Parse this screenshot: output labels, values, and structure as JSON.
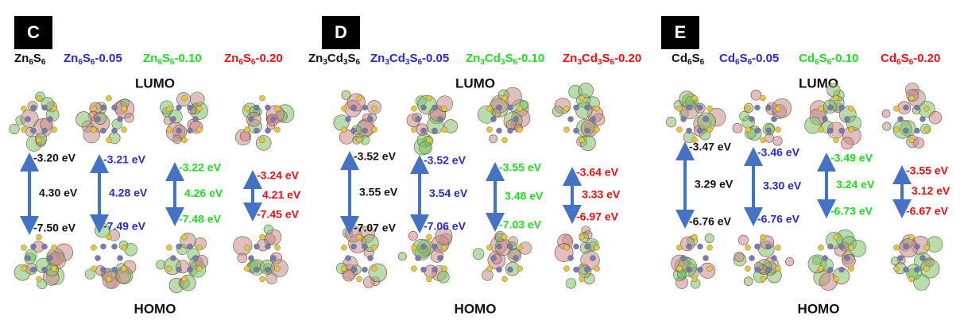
{
  "panels": [
    {
      "label": "C",
      "lumo_title": "LUMO",
      "homo_title": "HOMO",
      "columns": [
        {
          "name": [
            "Zn",
            "6",
            "S",
            "6"
          ],
          "lumo": "-3.20 eV",
          "gap": "4.30 eV",
          "homo": "-7.50 eV"
        },
        {
          "name": [
            "Zn",
            "6",
            "S",
            "6",
            "-0.05"
          ],
          "lumo": "-3.21 eV",
          "gap": "4.28 eV",
          "homo": "-7.49 eV"
        },
        {
          "name": [
            "Zn",
            "6",
            "S",
            "6",
            "-0.10"
          ],
          "lumo": "-3.22 eV",
          "gap": "4.26 eV",
          "homo": "-7.48 eV"
        },
        {
          "name": [
            "Zn",
            "6",
            "S",
            "6",
            "-0.20"
          ],
          "lumo": "-3.24 eV",
          "gap": "4.21 eV",
          "homo": "-7.45 eV"
        }
      ]
    },
    {
      "label": "D",
      "lumo_title": "LUMO",
      "homo_title": "HOMO",
      "columns": [
        {
          "name": [
            "Zn",
            "3",
            "Cd",
            "3",
            "S",
            "6"
          ],
          "lumo": "-3.52 eV",
          "gap": "3.55 eV",
          "homo": "-7.07 eV"
        },
        {
          "name": [
            "Zn",
            "3",
            "Cd",
            "3",
            "S",
            "6",
            "-0.05"
          ],
          "lumo": "-3.52 eV",
          "gap": "3.54 eV",
          "homo": "-7.06 eV"
        },
        {
          "name": [
            "Zn",
            "3",
            "Cd",
            "3",
            "S",
            "6",
            "-0.10"
          ],
          "lumo": "-3.55 eV",
          "gap": "3.48 eV",
          "homo": "-7.03 eV"
        },
        {
          "name": [
            "Zn",
            "3",
            "Cd",
            "3",
            "S",
            "6",
            "-0.20"
          ],
          "lumo": "-3.64 eV",
          "gap": "3.33 eV",
          "homo": "-6.97 eV"
        }
      ]
    },
    {
      "label": "E",
      "lumo_title": "LUMO",
      "homo_title": "HOMO",
      "columns": [
        {
          "name": [
            "Cd",
            "6",
            "S",
            "6"
          ],
          "lumo": "-3.47 eV",
          "gap": "3.29 eV",
          "homo": "-6.76 eV"
        },
        {
          "name": [
            "Cd",
            "6",
            "S",
            "6",
            "-0.05"
          ],
          "lumo": "-3.46 eV",
          "gap": "3.30 eV",
          "homo": "-6.76 eV"
        },
        {
          "name": [
            "Cd",
            "6",
            "S",
            "6",
            "-0.10"
          ],
          "lumo": "-3.49 eV",
          "gap": "3.24 eV",
          "homo": "-6.73 eV"
        },
        {
          "name": [
            "Cd",
            "6",
            "S",
            "6",
            "-0.20"
          ],
          "lumo": "-3.55 eV",
          "gap": "3.12 eV",
          "homo": "-6.67 eV"
        }
      ]
    }
  ]
}
